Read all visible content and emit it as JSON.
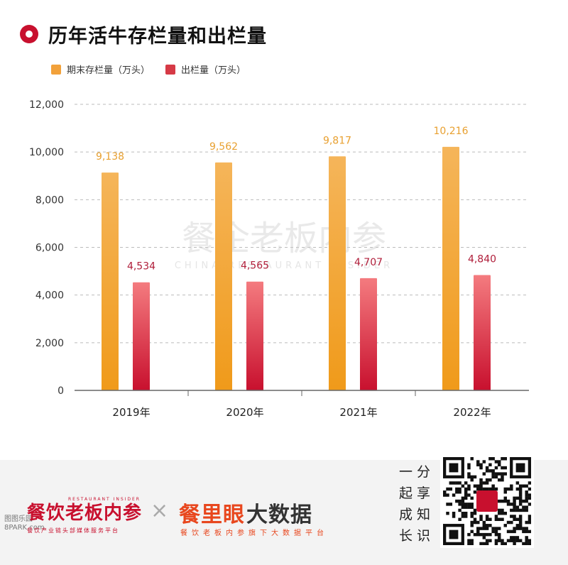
{
  "title": "历年活牛存栏量和出栏量",
  "legend": [
    {
      "label": "期末存栏量（万头）",
      "color": "#f2a13a"
    },
    {
      "label": "出栏量（万头）",
      "color": "#d63a46"
    }
  ],
  "chart_data": {
    "type": "bar",
    "title": "历年活牛存栏量和出栏量",
    "categories": [
      "2019年",
      "2020年",
      "2021年",
      "2022年"
    ],
    "series": [
      {
        "name": "期末存栏量（万头）",
        "values": [
          9138,
          9562,
          9817,
          10216
        ],
        "labels": [
          "9,138",
          "9,562",
          "9,817",
          "10,216"
        ],
        "color": "#f2a13a",
        "label_color": "#e8a030"
      },
      {
        "name": "出栏量（万头）",
        "values": [
          4534,
          4565,
          4707,
          4840
        ],
        "labels": [
          "4,534",
          "4,565",
          "4,707",
          "4,840"
        ],
        "color": "#d63a46",
        "label_color": "#b01e3a"
      }
    ],
    "yticks": [
      "0",
      "2,000",
      "4,000",
      "6,000",
      "8,000",
      "10,000",
      "12,000"
    ],
    "ylim": [
      0,
      12000
    ],
    "grid": true,
    "legend_position": "top-left"
  },
  "watermark": {
    "cn": "餐企老板内参",
    "en": "CHINA RESTAURANT INSIDER"
  },
  "footer": {
    "brand1": "餐饮老板内参",
    "brand1_en": "RESTAURANT INSIDER",
    "brand1_sub": "餐饮产业链头部媒体服务平台",
    "cross": "×",
    "brand2_a": "餐里眼",
    "brand2_b": "大数据",
    "brand2_sub": "餐饮老板内参旗下大数据平台",
    "slogan_row1": "一分",
    "slogan_row2": "起享",
    "slogan_row3": "成知",
    "slogan_row4": "长识",
    "corner_watermark_line1": "图图乐园",
    "corner_watermark_line2": "8PARK.com"
  }
}
